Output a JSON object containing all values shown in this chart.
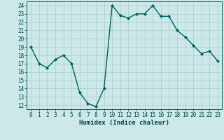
{
  "x": [
    0,
    1,
    2,
    3,
    4,
    5,
    6,
    7,
    8,
    9,
    10,
    11,
    12,
    13,
    14,
    15,
    16,
    17,
    18,
    19,
    20,
    21,
    22,
    23
  ],
  "y": [
    19,
    17,
    16.5,
    17.5,
    18,
    17,
    13.5,
    12.2,
    11.8,
    14,
    24,
    22.8,
    22.5,
    23,
    23,
    24,
    22.7,
    22.7,
    21,
    20.2,
    19.2,
    18.2,
    18.5,
    17.3
  ],
  "line_color": "#006060",
  "marker_color": "#006060",
  "bg_color": "#cce8e8",
  "grid_color": "#aacccc",
  "xlabel": "Humidex (Indice chaleur)",
  "xlim": [
    -0.5,
    23.5
  ],
  "ylim": [
    11.5,
    24.5
  ],
  "yticks": [
    12,
    13,
    14,
    15,
    16,
    17,
    18,
    19,
    20,
    21,
    22,
    23,
    24
  ],
  "xticks": [
    0,
    1,
    2,
    3,
    4,
    5,
    6,
    7,
    8,
    9,
    10,
    11,
    12,
    13,
    14,
    15,
    16,
    17,
    18,
    19,
    20,
    21,
    22,
    23
  ],
  "tick_label_fontsize": 5.5,
  "xlabel_fontsize": 6.5,
  "linewidth": 1.0,
  "markersize": 2.0
}
